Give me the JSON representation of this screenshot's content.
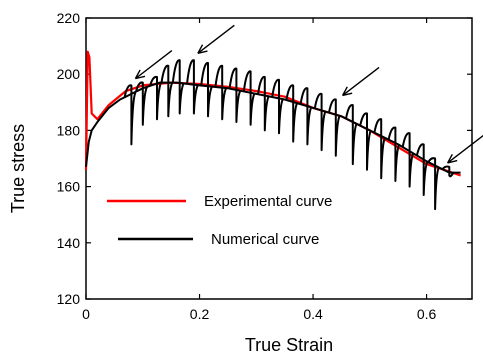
{
  "chart_data": {
    "type": "line",
    "xlabel": "True Strain",
    "ylabel": "True stress",
    "xlim": [
      0,
      0.68
    ],
    "ylim": [
      120,
      220
    ],
    "x_ticks": [
      "0",
      "0.2",
      "0.4",
      "0.6"
    ],
    "x_tick_values": [
      0,
      0.2,
      0.4,
      0.6
    ],
    "y_ticks": [
      "120",
      "140",
      "160",
      "180",
      "200",
      "220"
    ],
    "y_tick_values": [
      120,
      140,
      160,
      180,
      200,
      220
    ],
    "grid": false,
    "legend_position": "lower-left",
    "series": [
      {
        "name": "Experimental curve",
        "color": "#ff0000",
        "x": [
          0,
          0.003,
          0.006,
          0.01,
          0.02,
          0.04,
          0.07,
          0.1,
          0.15,
          0.2,
          0.25,
          0.3,
          0.35,
          0.4,
          0.45,
          0.5,
          0.55,
          0.6,
          0.63,
          0.66
        ],
        "y": [
          166,
          208,
          206,
          186,
          184,
          189,
          194,
          196,
          197,
          196.5,
          195.5,
          194,
          192,
          188,
          185,
          180,
          174,
          168,
          166,
          164
        ]
      },
      {
        "name": "Numerical curve",
        "color": "#000000",
        "envelope_x": [
          0,
          0.005,
          0.01,
          0.02,
          0.04,
          0.06,
          0.08,
          0.1,
          0.13,
          0.16,
          0.2,
          0.25,
          0.3,
          0.35,
          0.4,
          0.45,
          0.5,
          0.55,
          0.6,
          0.64,
          0.66
        ],
        "envelope_y": [
          167,
          176,
          180,
          183,
          188,
          191,
          193,
          195,
          197,
          197,
          196,
          195,
          193,
          191,
          188,
          185,
          180,
          175,
          169,
          165,
          165
        ],
        "serrations": [
          {
            "x": 0.08,
            "peak": 196,
            "drop": 175
          },
          {
            "x": 0.1,
            "peak": 197,
            "drop": 182
          },
          {
            "x": 0.125,
            "peak": 199,
            "drop": 184
          },
          {
            "x": 0.145,
            "peak": 203,
            "drop": 185
          },
          {
            "x": 0.165,
            "peak": 205,
            "drop": 186
          },
          {
            "x": 0.19,
            "peak": 205,
            "drop": 186
          },
          {
            "x": 0.215,
            "peak": 204,
            "drop": 185
          },
          {
            "x": 0.24,
            "peak": 203,
            "drop": 184
          },
          {
            "x": 0.265,
            "peak": 202,
            "drop": 183
          },
          {
            "x": 0.29,
            "peak": 201,
            "drop": 182
          },
          {
            "x": 0.315,
            "peak": 199,
            "drop": 180
          },
          {
            "x": 0.34,
            "peak": 198,
            "drop": 179
          },
          {
            "x": 0.365,
            "peak": 196,
            "drop": 176
          },
          {
            "x": 0.39,
            "peak": 195,
            "drop": 175
          },
          {
            "x": 0.415,
            "peak": 193,
            "drop": 173
          },
          {
            "x": 0.44,
            "peak": 191,
            "drop": 171
          },
          {
            "x": 0.47,
            "peak": 189,
            "drop": 168
          },
          {
            "x": 0.495,
            "peak": 186,
            "drop": 166
          },
          {
            "x": 0.52,
            "peak": 184,
            "drop": 163
          },
          {
            "x": 0.545,
            "peak": 181,
            "drop": 162
          },
          {
            "x": 0.57,
            "peak": 179,
            "drop": 160
          },
          {
            "x": 0.595,
            "peak": 175,
            "drop": 157
          },
          {
            "x": 0.615,
            "peak": 170,
            "drop": 152
          },
          {
            "x": 0.64,
            "peak": 167,
            "drop": 164
          }
        ]
      }
    ],
    "legend": [
      {
        "label": "Experimental curve",
        "color": "#ff0000"
      },
      {
        "label": "Numerical  curve",
        "color": "#000000"
      }
    ],
    "annotations": [
      {
        "type": "arrow",
        "target_x": 0.08,
        "target_y": 197
      },
      {
        "type": "arrow",
        "target_x": 0.19,
        "target_y": 206
      },
      {
        "type": "arrow",
        "target_x": 0.445,
        "target_y": 191
      },
      {
        "type": "arrow",
        "target_x": 0.63,
        "target_y": 167
      }
    ]
  }
}
